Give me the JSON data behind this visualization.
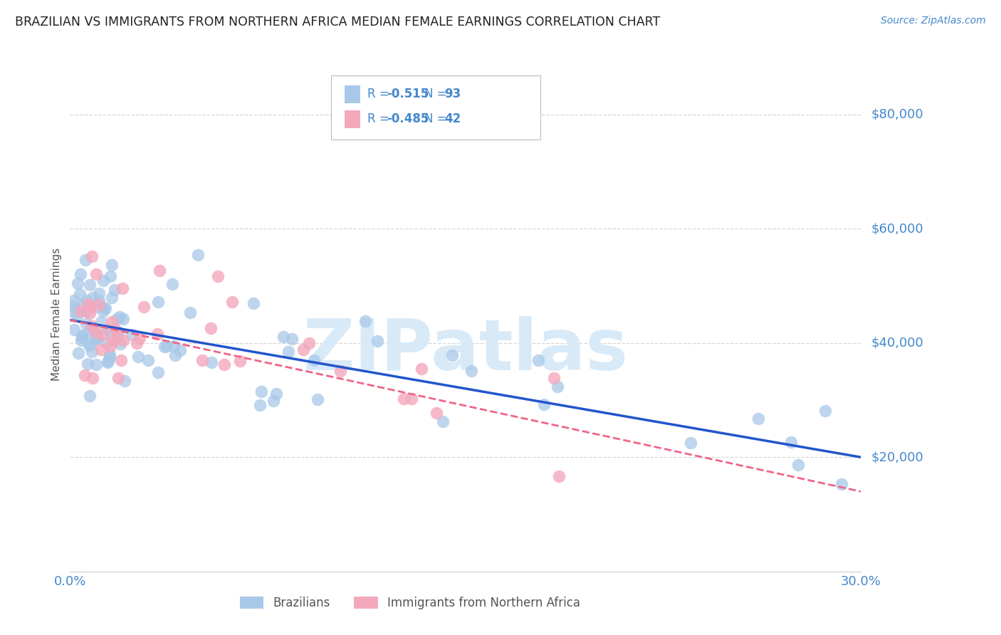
{
  "title": "BRAZILIAN VS IMMIGRANTS FROM NORTHERN AFRICA MEDIAN FEMALE EARNINGS CORRELATION CHART",
  "source": "Source: ZipAtlas.com",
  "ylabel": "Median Female Earnings",
  "xlim": [
    0.0,
    0.3
  ],
  "ylim": [
    0,
    90000
  ],
  "yticks": [
    0,
    20000,
    40000,
    60000,
    80000
  ],
  "ytick_labels": [
    "",
    "$20,000",
    "$40,000",
    "$60,000",
    "$80,000"
  ],
  "xticks": [
    0.0,
    0.05,
    0.1,
    0.15,
    0.2,
    0.25,
    0.3
  ],
  "xtick_labels": [
    "0.0%",
    "",
    "",
    "",
    "",
    "",
    "30.0%"
  ],
  "series1_label": "Brazilians",
  "series2_label": "Immigrants from Northern Africa",
  "series1_R": -0.515,
  "series1_N": 93,
  "series2_R": -0.485,
  "series2_N": 42,
  "series1_color": "#a8c8e8",
  "series2_color": "#f4a8bc",
  "line1_color": "#2255cc",
  "line2_color": "#ee6688",
  "legend_text_color": "#4488cc",
  "axis_label_color": "#4488cc",
  "watermark_color": "#d8eaf8",
  "background_color": "#ffffff",
  "grid_color": "#cccccc",
  "title_color": "#222222",
  "source_color": "#4488cc"
}
